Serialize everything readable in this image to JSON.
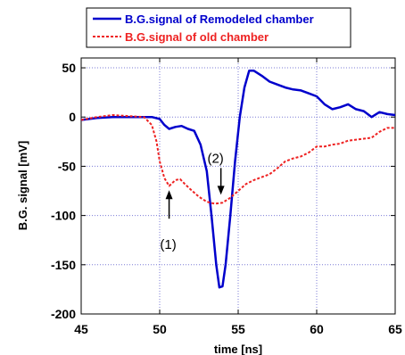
{
  "chart_data": {
    "type": "line",
    "title": "",
    "xlabel": "time [ns]",
    "ylabel": "B.G. signal  [mV]",
    "xlim": [
      45,
      65
    ],
    "ylim": [
      -200,
      60
    ],
    "x_ticks": [
      "45",
      "50",
      "55",
      "60",
      "65"
    ],
    "y_ticks": [
      "50",
      "0",
      "-50",
      "-100",
      "-150",
      "-200"
    ],
    "grid": true,
    "legend_position": "top",
    "annotations": [
      {
        "label": "(1)",
        "x": 50.6,
        "y": -67
      },
      {
        "label": "(2)",
        "x": 53.9,
        "y": -88
      }
    ],
    "series": [
      {
        "name": "B.G.signal of Remodeled chamber",
        "color": "#0000cc",
        "style": "solid",
        "x": [
          45,
          46,
          47,
          48,
          49,
          49.5,
          50,
          50.3,
          50.6,
          51,
          51.4,
          51.8,
          52.2,
          52.6,
          53,
          53.3,
          53.6,
          53.8,
          54,
          54.2,
          54.5,
          54.8,
          55.1,
          55.4,
          55.7,
          56,
          56.5,
          57,
          57.5,
          58,
          58.5,
          59,
          59.5,
          60,
          60.5,
          61,
          61.5,
          62,
          62.5,
          63,
          63.5,
          64,
          64.5,
          65
        ],
        "y": [
          -3,
          -1,
          0,
          0,
          0,
          0,
          -2,
          -8,
          -12,
          -10,
          -9,
          -12,
          -14,
          -28,
          -55,
          -100,
          -150,
          -173,
          -172,
          -150,
          -100,
          -45,
          0,
          30,
          47,
          47,
          42,
          36,
          33,
          30,
          28,
          27,
          24,
          21,
          13,
          8,
          10,
          13,
          8,
          6,
          0,
          5,
          3,
          2
        ]
      },
      {
        "name": "B.G.signal of old chamber",
        "color": "#ee2222",
        "style": "dashed",
        "x": [
          45,
          46,
          47,
          48,
          49,
          49.5,
          49.8,
          50,
          50.3,
          50.6,
          51,
          51.3,
          51.6,
          52,
          52.5,
          53,
          53.5,
          54,
          54.5,
          55,
          55.5,
          56,
          56.5,
          57,
          57.5,
          58,
          58.5,
          59,
          59.5,
          60,
          60.5,
          61,
          61.5,
          62,
          62.5,
          63,
          63.5,
          64,
          64.5,
          65
        ],
        "y": [
          -3,
          0,
          2,
          1,
          0,
          -8,
          -25,
          -45,
          -62,
          -70,
          -64,
          -63,
          -68,
          -74,
          -81,
          -86,
          -88,
          -87,
          -82,
          -75,
          -68,
          -64,
          -61,
          -58,
          -52,
          -45,
          -42,
          -40,
          -36,
          -30,
          -30,
          -28,
          -27,
          -24,
          -23,
          -22,
          -21,
          -15,
          -11,
          -11
        ]
      }
    ]
  }
}
